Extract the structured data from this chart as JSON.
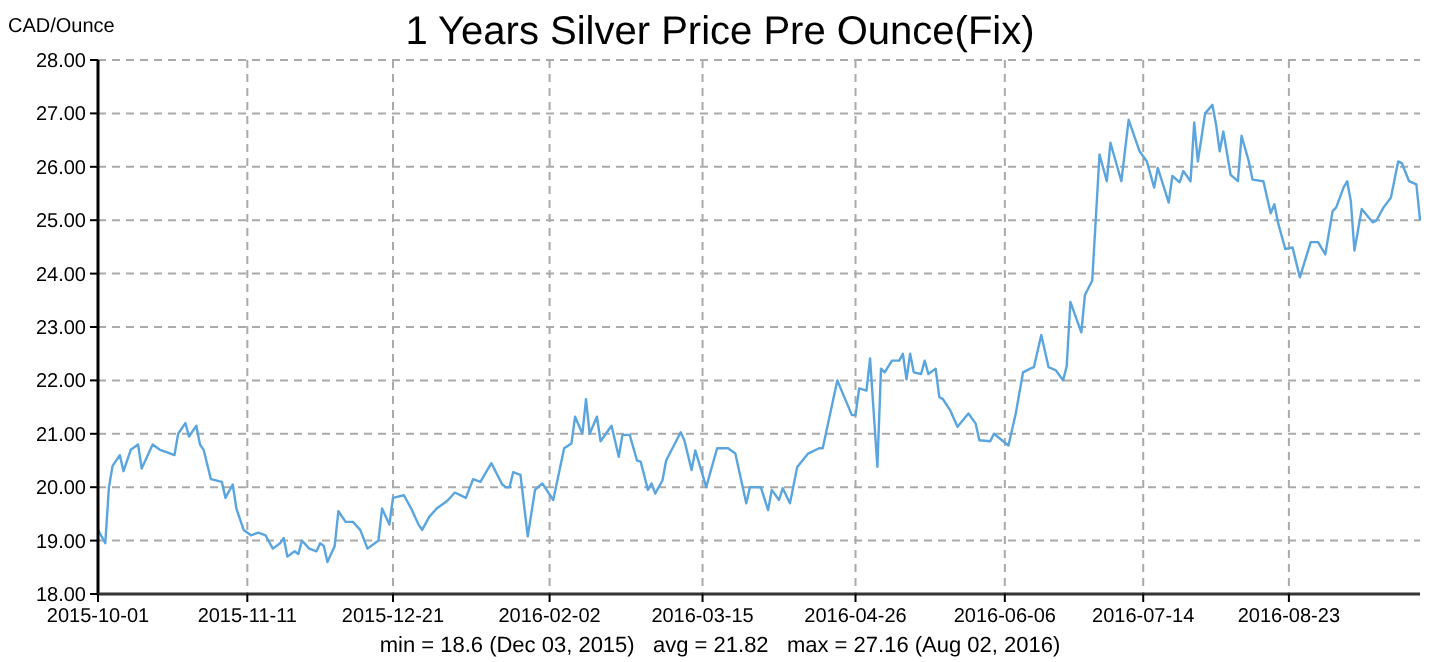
{
  "chart_data": {
    "type": "line",
    "title": "1 Years Silver Price Pre Ounce(Fix)",
    "ylabel": "CAD/Ounce",
    "annotations": [
      "min = 18.6 (Dec 03, 2015)   avg = 21.82   max = 27.16 (Aug 02, 2016)"
    ],
    "grid": true,
    "line_style": "solid",
    "marker": "none",
    "xlim": [
      "2015-10-01",
      "2016-09-28"
    ],
    "xticks": [
      "2015-10-01",
      "2015-11-11",
      "2015-12-21",
      "2016-02-02",
      "2016-03-15",
      "2016-04-26",
      "2016-06-06",
      "2016-07-14",
      "2016-08-23"
    ],
    "ylim": [
      18,
      28
    ],
    "yticks": [
      {
        "value": 18,
        "label": "18.00"
      },
      {
        "value": 19,
        "label": "19.00"
      },
      {
        "value": 20,
        "label": "20.00"
      },
      {
        "value": 21,
        "label": "21.00"
      },
      {
        "value": 22,
        "label": "22.00"
      },
      {
        "value": 23,
        "label": "23.00"
      },
      {
        "value": 24,
        "label": "24.00"
      },
      {
        "value": 25,
        "label": "25.00"
      },
      {
        "value": 26,
        "label": "26.00"
      },
      {
        "value": 27,
        "label": "27.00"
      },
      {
        "value": 28,
        "label": "28.00"
      }
    ],
    "x": [
      "2015-10-01",
      "2015-10-03",
      "2015-10-04",
      "2015-10-05",
      "2015-10-07",
      "2015-10-08",
      "2015-10-10",
      "2015-10-12",
      "2015-10-13",
      "2015-10-14",
      "2015-10-16",
      "2015-10-18",
      "2015-10-20",
      "2015-10-22",
      "2015-10-23",
      "2015-10-25",
      "2015-10-26",
      "2015-10-28",
      "2015-10-29",
      "2015-10-30",
      "2015-11-01",
      "2015-11-04",
      "2015-11-05",
      "2015-11-07",
      "2015-11-08",
      "2015-11-10",
      "2015-11-12",
      "2015-11-14",
      "2015-11-16",
      "2015-11-18",
      "2015-11-20",
      "2015-11-21",
      "2015-11-22",
      "2015-11-24",
      "2015-11-25",
      "2015-11-26",
      "2015-11-28",
      "2015-11-30",
      "2015-12-01",
      "2015-12-02",
      "2015-12-03",
      "2015-12-05",
      "2015-12-06",
      "2015-12-08",
      "2015-12-10",
      "2015-12-12",
      "2015-12-14",
      "2015-12-16",
      "2015-12-17",
      "2015-12-18",
      "2015-12-20",
      "2015-12-21",
      "2015-12-24",
      "2015-12-26",
      "2015-12-28",
      "2015-12-29",
      "2015-12-31",
      "2016-01-02",
      "2016-01-04",
      "2016-01-05",
      "2016-01-07",
      "2016-01-10",
      "2016-01-12",
      "2016-01-14",
      "2016-01-17",
      "2016-01-20",
      "2016-01-21",
      "2016-01-22",
      "2016-01-23",
      "2016-01-25",
      "2016-01-27",
      "2016-01-29",
      "2016-01-31",
      "2016-02-03",
      "2016-02-06",
      "2016-02-08",
      "2016-02-09",
      "2016-02-11",
      "2016-02-12",
      "2016-02-13",
      "2016-02-15",
      "2016-02-16",
      "2016-02-19",
      "2016-02-21",
      "2016-02-22",
      "2016-02-24",
      "2016-02-26",
      "2016-02-27",
      "2016-02-29",
      "2016-03-01",
      "2016-03-02",
      "2016-03-04",
      "2016-03-05",
      "2016-03-09",
      "2016-03-10",
      "2016-03-12",
      "2016-03-13",
      "2016-03-16",
      "2016-03-19",
      "2016-03-22",
      "2016-03-24",
      "2016-03-27",
      "2016-03-28",
      "2016-03-31",
      "2016-04-02",
      "2016-04-03",
      "2016-04-05",
      "2016-04-06",
      "2016-04-08",
      "2016-04-10",
      "2016-04-13",
      "2016-04-16",
      "2016-04-17",
      "2016-04-21",
      "2016-04-25",
      "2016-04-26",
      "2016-04-27",
      "2016-04-29",
      "2016-04-30",
      "2016-05-02",
      "2016-05-03",
      "2016-05-04",
      "2016-05-06",
      "2016-05-08",
      "2016-05-09",
      "2016-05-10",
      "2016-05-11",
      "2016-05-12",
      "2016-05-14",
      "2016-05-15",
      "2016-05-16",
      "2016-05-18",
      "2016-05-19",
      "2016-05-20",
      "2016-05-22",
      "2016-05-24",
      "2016-05-27",
      "2016-05-29",
      "2016-05-30",
      "2016-06-02",
      "2016-06-03",
      "2016-06-07",
      "2016-06-09",
      "2016-06-11",
      "2016-06-13",
      "2016-06-14",
      "2016-06-16",
      "2016-06-18",
      "2016-06-20",
      "2016-06-22",
      "2016-06-23",
      "2016-06-24",
      "2016-06-27",
      "2016-06-28",
      "2016-06-30",
      "2016-07-02",
      "2016-07-04",
      "2016-07-05",
      "2016-07-08",
      "2016-07-10",
      "2016-07-13",
      "2016-07-15",
      "2016-07-17",
      "2016-07-18",
      "2016-07-21",
      "2016-07-22",
      "2016-07-24",
      "2016-07-25",
      "2016-07-27",
      "2016-07-28",
      "2016-07-29",
      "2016-07-31",
      "2016-08-02",
      "2016-08-03",
      "2016-08-04",
      "2016-08-05",
      "2016-08-07",
      "2016-08-09",
      "2016-08-10",
      "2016-08-12",
      "2016-08-13",
      "2016-08-16",
      "2016-08-18",
      "2016-08-19",
      "2016-08-20",
      "2016-08-22",
      "2016-08-24",
      "2016-08-26",
      "2016-08-29",
      "2016-08-31",
      "2016-09-02",
      "2016-09-04",
      "2016-09-05",
      "2016-09-07",
      "2016-09-08",
      "2016-09-09",
      "2016-09-10",
      "2016-09-12",
      "2016-09-15",
      "2016-09-16",
      "2016-09-18",
      "2016-09-20",
      "2016-09-22",
      "2016-09-23",
      "2016-09-25",
      "2016-09-27",
      "2016-09-28"
    ],
    "series": [
      {
        "color": "#5aa5e0",
        "values": [
          19.2,
          18.95,
          20.0,
          20.4,
          20.6,
          20.3,
          20.7,
          20.8,
          20.35,
          20.5,
          20.8,
          20.7,
          20.65,
          20.6,
          21.0,
          21.2,
          20.95,
          21.15,
          20.8,
          20.7,
          20.15,
          20.1,
          19.8,
          20.05,
          19.6,
          19.2,
          19.1,
          19.15,
          19.1,
          18.85,
          18.95,
          19.05,
          18.7,
          18.8,
          18.75,
          19.0,
          18.85,
          18.8,
          18.95,
          18.9,
          18.6,
          18.9,
          19.55,
          19.35,
          19.35,
          19.2,
          18.85,
          18.95,
          19.0,
          19.6,
          19.3,
          19.8,
          19.85,
          19.6,
          19.3,
          19.2,
          19.45,
          19.6,
          19.7,
          19.75,
          19.9,
          19.8,
          20.15,
          20.1,
          20.45,
          20.05,
          20.0,
          20.0,
          20.28,
          20.23,
          19.08,
          19.95,
          20.07,
          19.76,
          20.73,
          20.82,
          21.32,
          21.0,
          21.65,
          21.0,
          21.32,
          20.86,
          21.15,
          20.57,
          20.98,
          20.98,
          20.5,
          20.48,
          19.95,
          20.07,
          19.88,
          20.13,
          20.5,
          21.03,
          20.88,
          20.32,
          20.69,
          20.0,
          20.73,
          20.73,
          20.63,
          19.7,
          20.0,
          20.0,
          19.57,
          19.95,
          19.76,
          19.98,
          19.7,
          20.38,
          20.63,
          20.73,
          20.73,
          22.0,
          21.35,
          21.35,
          21.85,
          21.81,
          22.41,
          20.38,
          22.22,
          22.15,
          22.37,
          22.37,
          22.5,
          22.02,
          22.5,
          22.15,
          22.12,
          22.37,
          22.12,
          22.22,
          21.69,
          21.65,
          21.44,
          21.13,
          21.38,
          21.19,
          20.88,
          20.86,
          21.0,
          20.78,
          21.38,
          22.15,
          22.22,
          22.25,
          22.85,
          22.25,
          22.19,
          22.0,
          22.27,
          23.47,
          22.9,
          23.6,
          23.87,
          26.23,
          25.73,
          26.45,
          25.73,
          26.88,
          26.29,
          26.1,
          25.61,
          25.98,
          25.33,
          25.83,
          25.71,
          25.92,
          25.73,
          26.83,
          26.1,
          27.0,
          27.16,
          26.79,
          26.29,
          26.66,
          25.85,
          25.73,
          26.58,
          26.1,
          25.76,
          25.73,
          25.13,
          25.3,
          24.96,
          24.46,
          24.49,
          23.93,
          24.59,
          24.59,
          24.36,
          25.17,
          25.24,
          25.61,
          25.73,
          25.36,
          24.43,
          25.21,
          24.96,
          24.99,
          25.24,
          25.42,
          26.1,
          26.07,
          25.73,
          25.67,
          25.01
        ]
      }
    ]
  }
}
